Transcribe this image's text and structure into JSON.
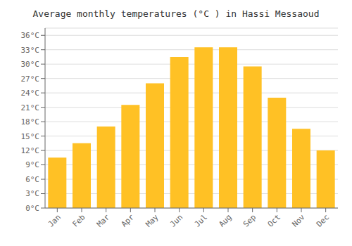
{
  "chart_data": {
    "type": "bar",
    "title": "Average monthly temperatures (°C ) in Hassi Messaoud",
    "categories": [
      "Jan",
      "Feb",
      "Mar",
      "Apr",
      "May",
      "Jun",
      "Jul",
      "Aug",
      "Sep",
      "Oct",
      "Nov",
      "Dec"
    ],
    "values": [
      10.5,
      13.5,
      17.0,
      21.5,
      26.0,
      31.5,
      33.5,
      33.5,
      29.5,
      23.0,
      16.5,
      12.0
    ],
    "color": "#FFC125",
    "ylim": [
      0,
      37.5
    ],
    "yticks": [
      {
        "value": 0,
        "label": "0°C"
      },
      {
        "value": 3,
        "label": "3°C"
      },
      {
        "value": 6,
        "label": "6°C"
      },
      {
        "value": 9,
        "label": "9°C"
      },
      {
        "value": 12,
        "label": "12°C"
      },
      {
        "value": 15,
        "label": "15°C"
      },
      {
        "value": 18,
        "label": "18°C"
      },
      {
        "value": 21,
        "label": "21°C"
      },
      {
        "value": 24,
        "label": "24°C"
      },
      {
        "value": 27,
        "label": "27°C"
      },
      {
        "value": 30,
        "label": "30°C"
      },
      {
        "value": 33,
        "label": "33°C"
      },
      {
        "value": 36,
        "label": "36°C"
      }
    ],
    "grid": true
  }
}
